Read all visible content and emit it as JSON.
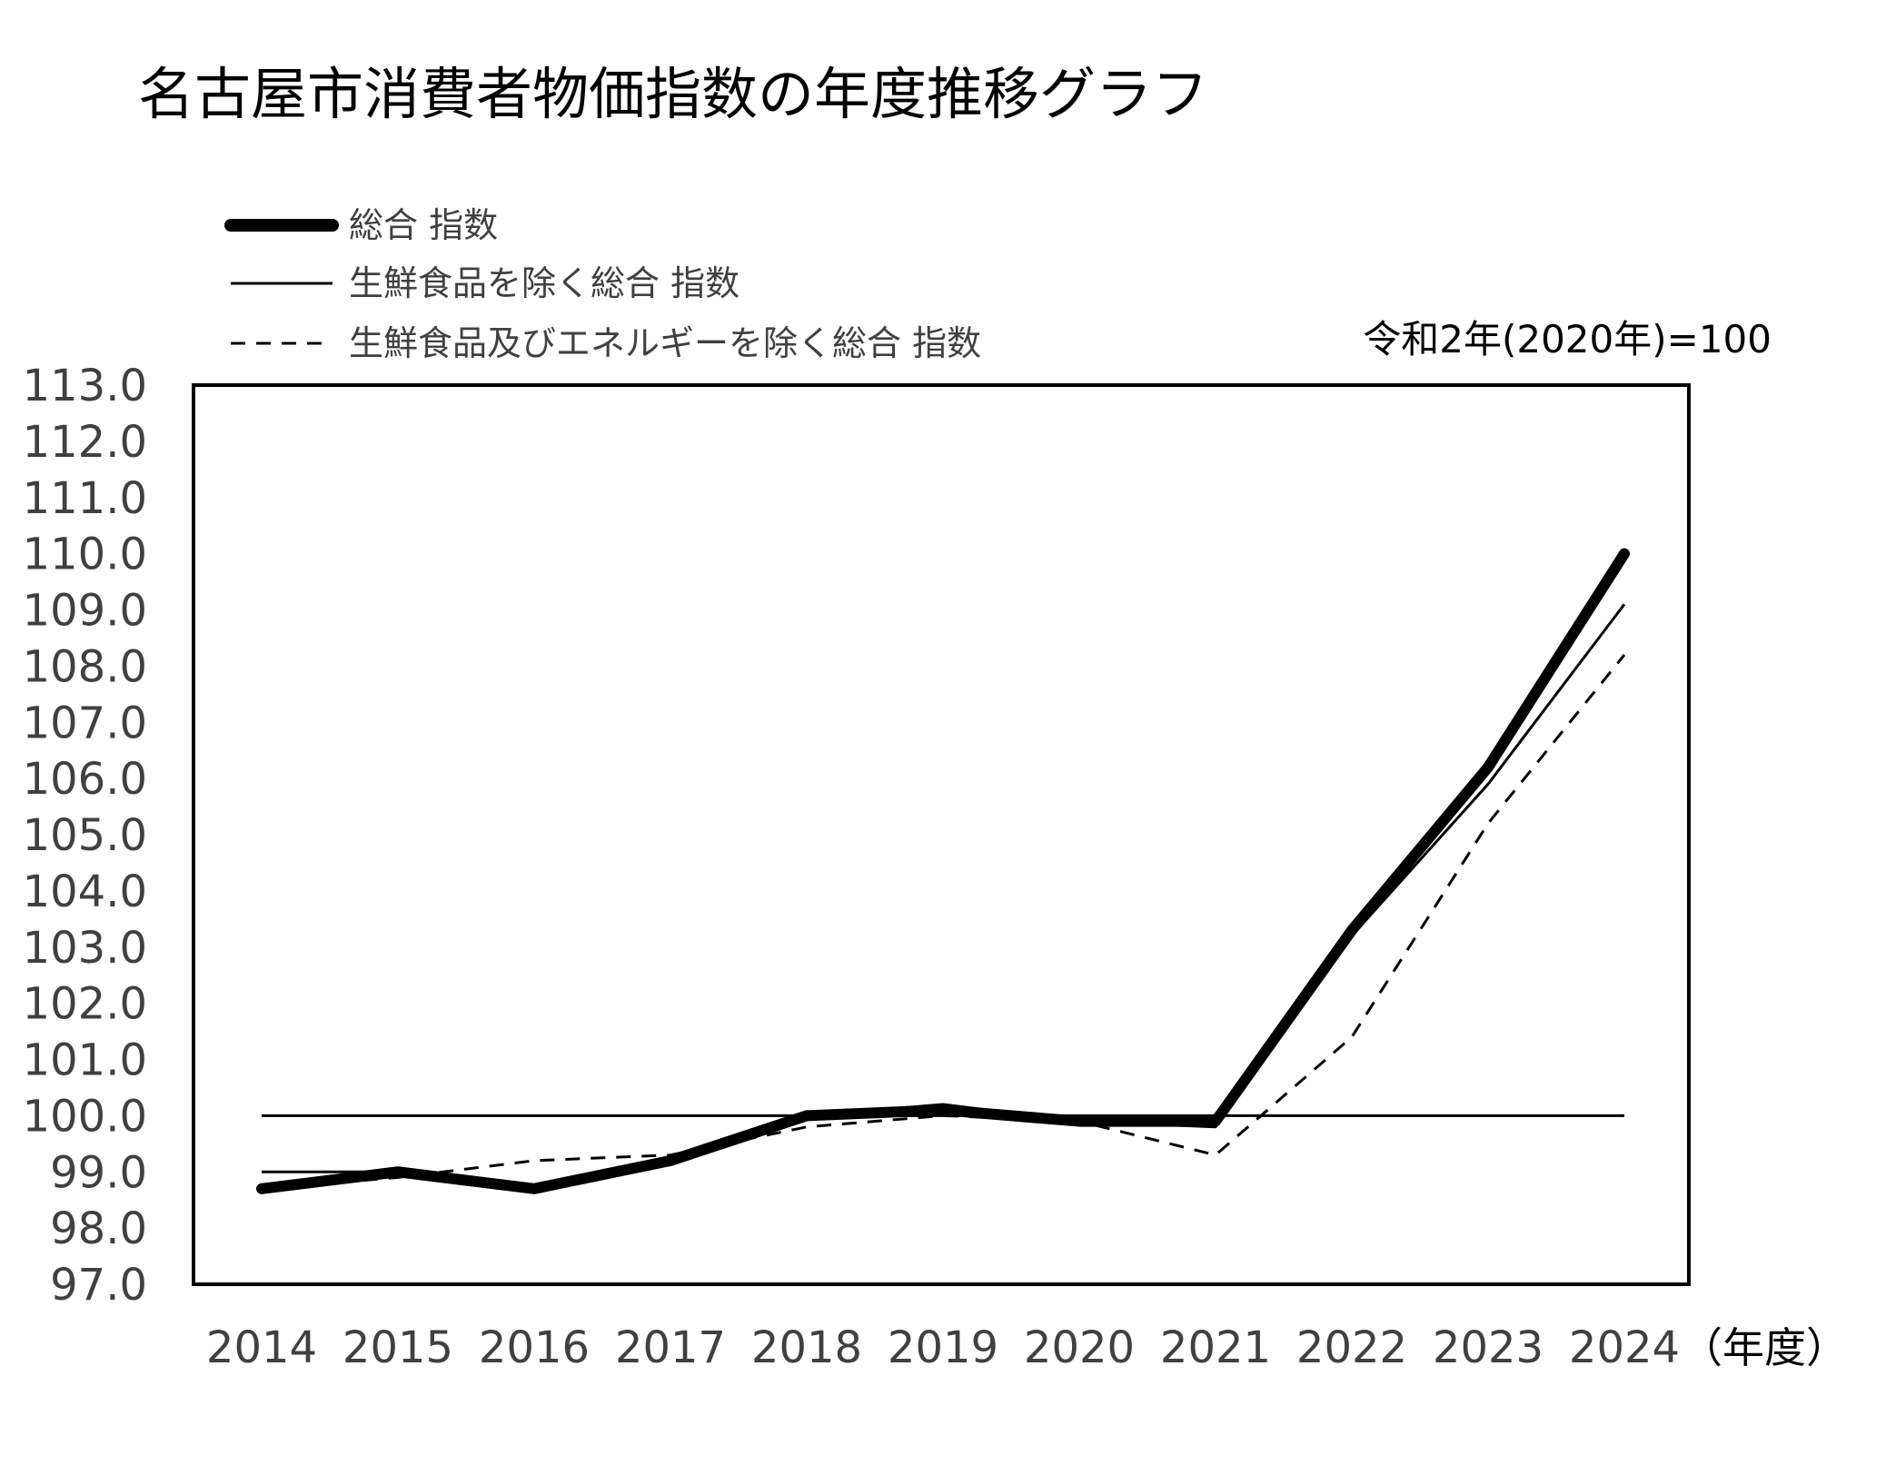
{
  "chart_data": {
    "type": "line",
    "title": "名古屋市消費者物価指数の年度推移グラフ",
    "base_note": "令和2年(2020年)=100",
    "x_unit_label": "（年度）",
    "categories": [
      "2014",
      "2015",
      "2016",
      "2017",
      "2018",
      "2019",
      "2020",
      "2021",
      "2022",
      "2023",
      "2024"
    ],
    "ylim": [
      97.0,
      113.0
    ],
    "y_ticks": [
      "113.0",
      "112.0",
      "111.0",
      "110.0",
      "109.0",
      "108.0",
      "107.0",
      "106.0",
      "105.0",
      "104.0",
      "103.0",
      "102.0",
      "101.0",
      "100.0",
      "99.0",
      "98.0",
      "97.0"
    ],
    "reference_line": 100.0,
    "legend_position": "top-left",
    "series": [
      {
        "name": "総合 指数",
        "style": "thick",
        "color": "#000000",
        "values": [
          98.7,
          99.0,
          98.7,
          99.2,
          100.0,
          100.1,
          99.9,
          99.9,
          103.3,
          106.2,
          110.0
        ]
      },
      {
        "name": "生鮮食品を除く総合 指数",
        "style": "thin",
        "color": "#000000",
        "values": [
          99.0,
          99.0,
          98.7,
          99.2,
          100.0,
          100.2,
          99.9,
          99.8,
          103.2,
          105.9,
          109.1
        ]
      },
      {
        "name": "生鮮食品及びエネルギーを除く総合 指数",
        "style": "dashed",
        "color": "#000000",
        "values": [
          98.7,
          98.9,
          99.2,
          99.3,
          99.8,
          100.0,
          99.9,
          99.3,
          101.4,
          105.2,
          108.2
        ]
      }
    ]
  }
}
